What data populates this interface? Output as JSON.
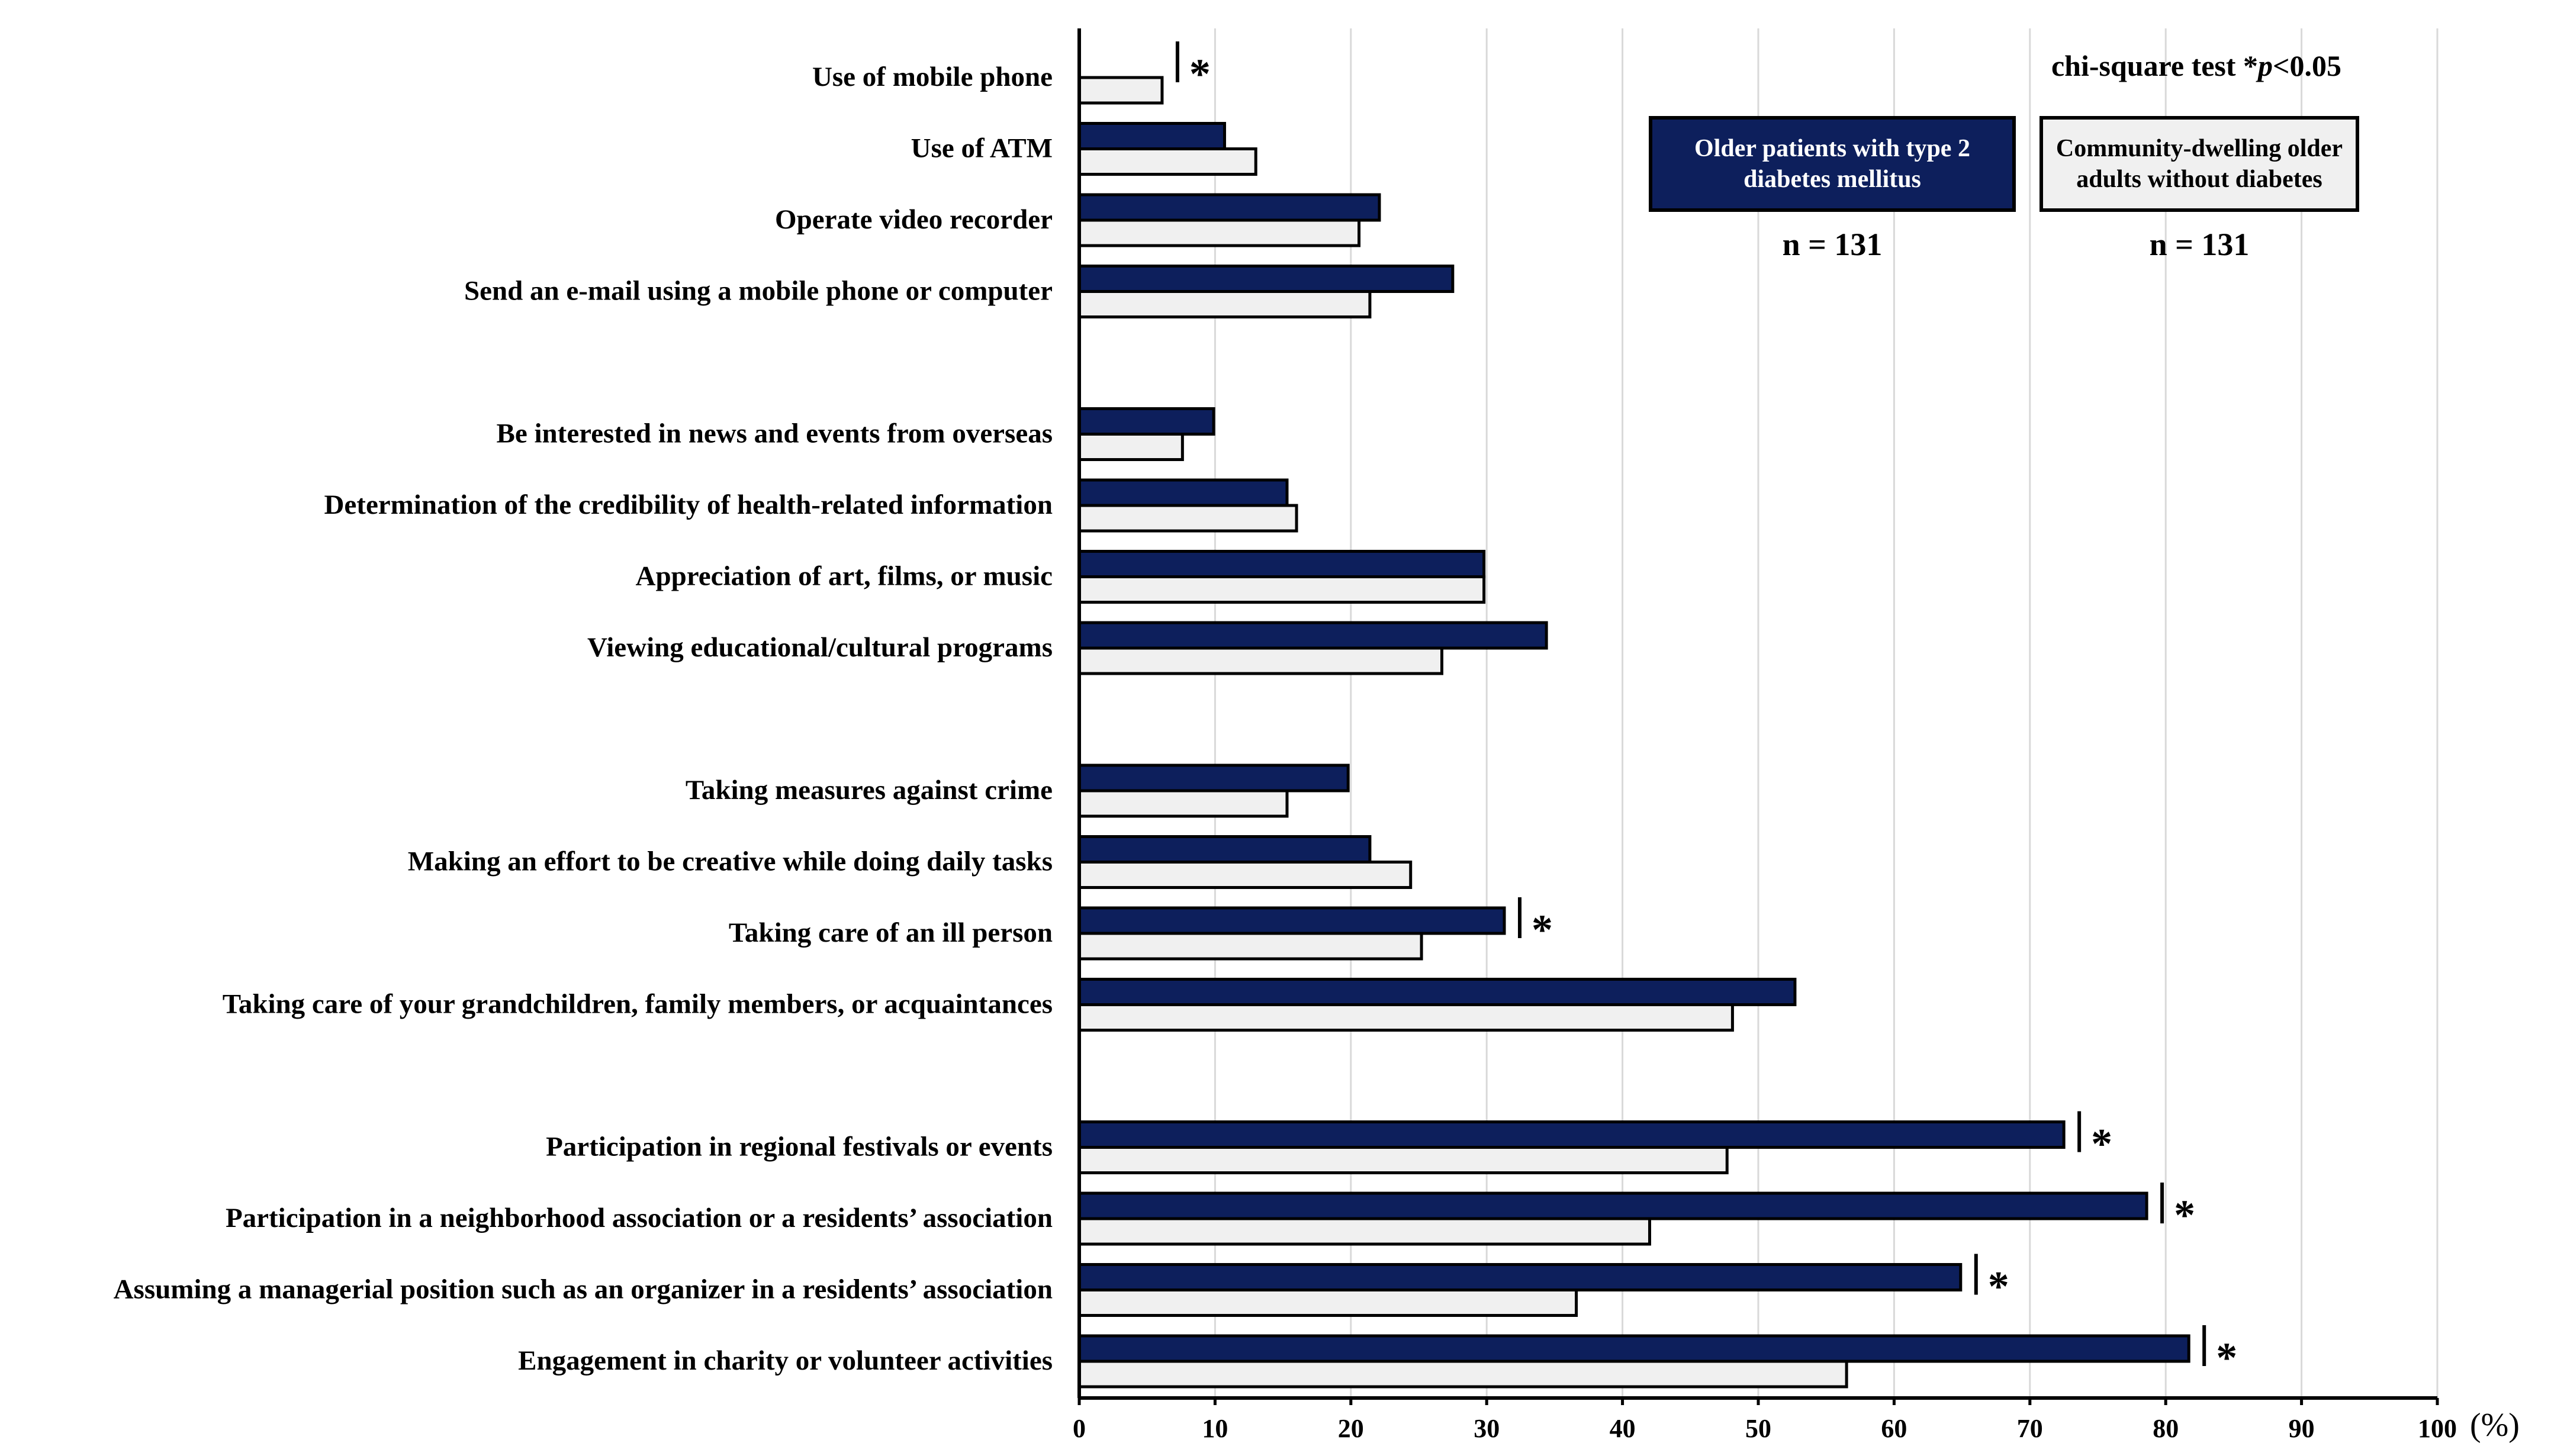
{
  "chart_data": {
    "type": "bar",
    "orientation": "horizontal",
    "title": "",
    "xlabel": "",
    "ylabel": "",
    "unit": "(%)",
    "xlim": [
      0,
      100
    ],
    "xticks": [
      0,
      10,
      20,
      30,
      40,
      50,
      60,
      70,
      80,
      90,
      100
    ],
    "grid": true,
    "legend_position": "top-right",
    "annotation": "chi-square test *p<0.05",
    "annotation_prefix": "chi-square test *",
    "annotation_italic": "p",
    "annotation_suffix": "<0.05",
    "significance_marker": "*",
    "categories": [
      "Use of mobile phone",
      "Use of ATM",
      "Operate video recorder",
      "Send an e-mail using a mobile phone or computer",
      "Be interested in news and events from overseas",
      "Determination of the credibility of health-related information",
      "Appreciation of art, films, or music",
      "Viewing educational/cultural programs",
      "Taking measures against crime",
      "Making an effort to be creative while doing daily tasks",
      "Taking care of an ill person",
      "Taking care of your grandchildren, family members, or acquaintances",
      "Participation in regional festivals or events",
      "Participation in a neighborhood association or a residents’ association",
      "Assuming a managerial position such as an organizer in a residents’ association",
      "Engagement in charity or volunteer activities"
    ],
    "groups": [
      [
        0,
        1,
        2,
        3
      ],
      [
        4,
        5,
        6,
        7
      ],
      [
        8,
        9,
        10,
        11
      ],
      [
        12,
        13,
        14,
        15
      ]
    ],
    "series": [
      {
        "name": "Older patients with type 2 diabetes mellitus",
        "n_label": "n = 131",
        "color": "#0d1f5c",
        "values": [
          0,
          10.7,
          22.1,
          27.5,
          9.9,
          15.3,
          29.8,
          34.4,
          19.8,
          21.4,
          31.3,
          52.7,
          72.5,
          78.6,
          64.9,
          81.7
        ]
      },
      {
        "name": "Community-dwelling older adults without diabetes",
        "n_label": "n = 131",
        "color": "#f0f0f0",
        "values": [
          6.1,
          13.0,
          20.6,
          21.4,
          7.6,
          16.0,
          29.8,
          26.7,
          15.3,
          24.4,
          25.2,
          48.1,
          47.7,
          42.0,
          36.6,
          56.5
        ]
      }
    ],
    "significant": [
      true,
      false,
      false,
      false,
      false,
      false,
      false,
      false,
      false,
      false,
      true,
      false,
      true,
      true,
      true,
      true
    ]
  }
}
